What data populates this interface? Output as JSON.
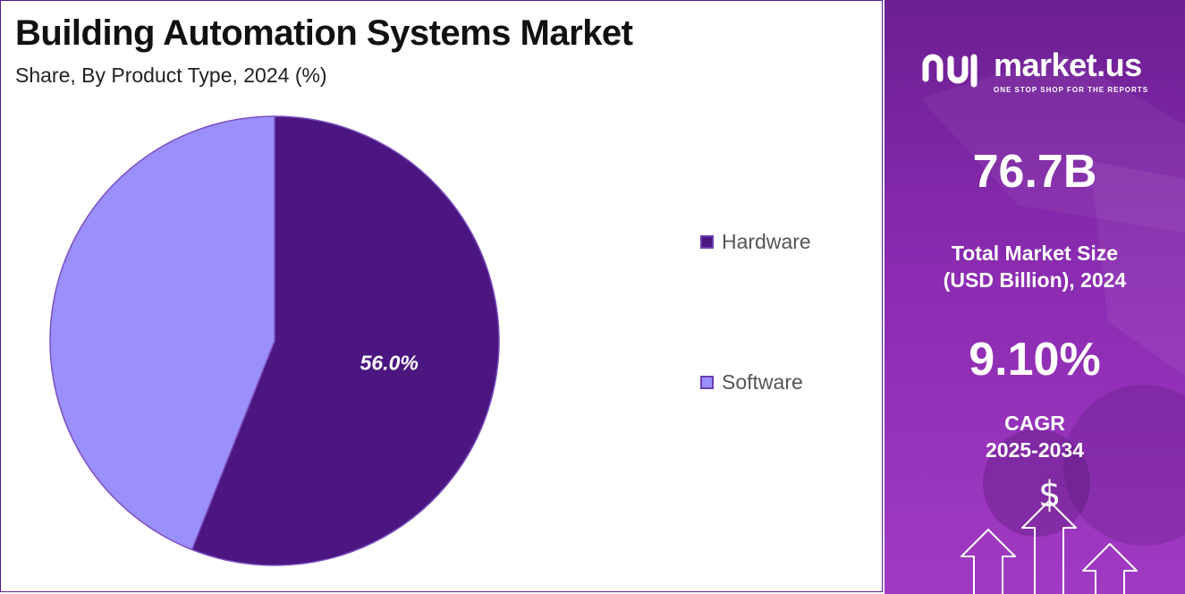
{
  "header": {
    "title": "Building Automation Systems Market",
    "subtitle": "Share, By Product Type, 2024 (%)"
  },
  "chart_data": {
    "type": "pie",
    "categories": [
      "Hardware",
      "Software"
    ],
    "values": [
      56.0,
      44.0
    ],
    "colors": [
      "#4b1680",
      "#9b8ffc"
    ],
    "data_labels": [
      "56.0%",
      ""
    ],
    "start_angle_deg": 0,
    "direction": "clockwise",
    "legend_position": "right"
  },
  "legend": {
    "items": [
      {
        "label": "Hardware",
        "color": "#4b1680"
      },
      {
        "label": "Software",
        "color": "#9b8ffc"
      }
    ]
  },
  "side_panel": {
    "brand_name": "market.us",
    "brand_tagline": "ONE STOP SHOP FOR THE REPORTS",
    "market_size_value": "76.7B",
    "market_size_label_1": "Total Market Size",
    "market_size_label_2": "(USD Billion), 2024",
    "cagr_value": "9.10%",
    "cagr_label_1": "CAGR",
    "cagr_label_2": "2025-2034",
    "dollar_symbol": "$",
    "icons": [
      "market-us-logo-icon",
      "dollar-icon",
      "growth-arrow-icon"
    ]
  }
}
